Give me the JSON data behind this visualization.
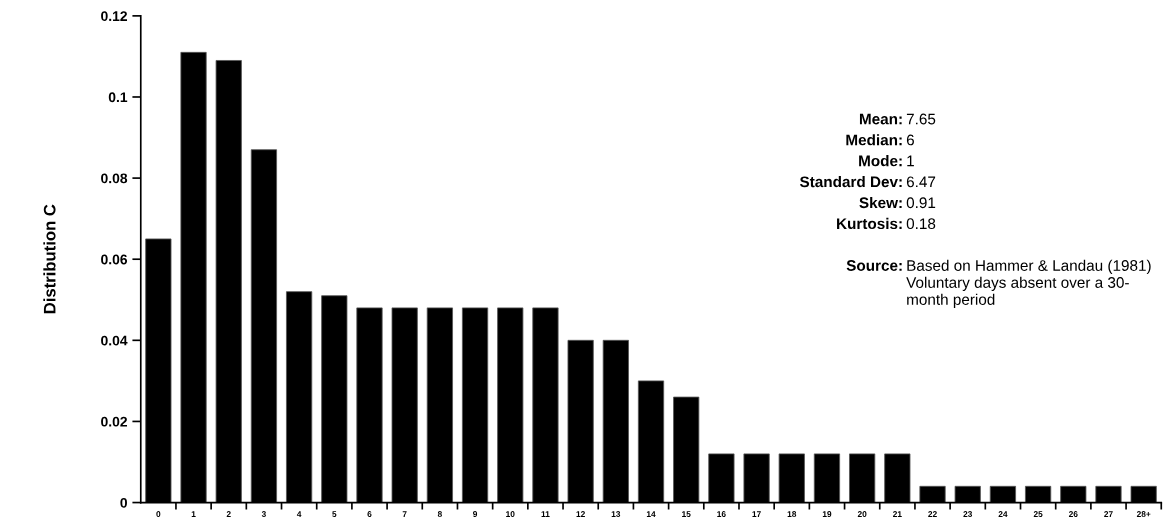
{
  "chart_data": {
    "type": "bar",
    "ylabel": "Distribution C",
    "categories": [
      "0",
      "1",
      "2",
      "3",
      "4",
      "5",
      "6",
      "7",
      "8",
      "9",
      "10",
      "11",
      "12",
      "13",
      "14",
      "15",
      "16",
      "17",
      "18",
      "19",
      "20",
      "21",
      "22",
      "23",
      "24",
      "25",
      "26",
      "27",
      "28+"
    ],
    "values": [
      0.065,
      0.111,
      0.109,
      0.087,
      0.052,
      0.051,
      0.048,
      0.048,
      0.048,
      0.048,
      0.048,
      0.048,
      0.04,
      0.04,
      0.03,
      0.026,
      0.012,
      0.012,
      0.012,
      0.012,
      0.012,
      0.012,
      0.004,
      0.004,
      0.004,
      0.004,
      0.004,
      0.004,
      0.004
    ],
    "color": "#000000",
    "ylim": [
      0,
      0.12
    ],
    "yticks": [
      0,
      0.02,
      0.04,
      0.06,
      0.08,
      {
        "value": 0.1,
        "label": "0.1"
      },
      0.12
    ],
    "grid": false,
    "legend": false,
    "annotations": [
      "Mean: 7.65",
      "Median: 6",
      "Mode: 1",
      "Standard Dev: 6.47",
      "Skew: 0.91",
      "Kurtosis: 0.18",
      "Source: Based on Hammer & Landau (1981)\nVoluntary days absent over a 30-\nmonth period"
    ]
  }
}
